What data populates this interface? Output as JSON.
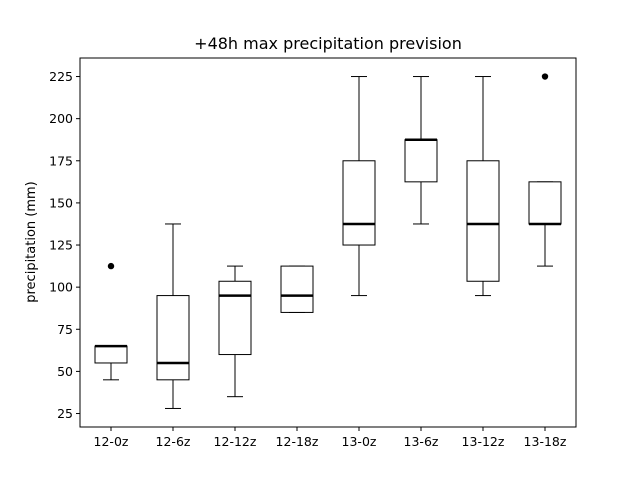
{
  "chart_data": {
    "type": "boxplot",
    "title": "+48h max precipitation prevision",
    "xlabel": "",
    "ylabel": "precipitation (mm)",
    "ylim": [
      17,
      236
    ],
    "yticks": [
      25,
      50,
      75,
      100,
      125,
      150,
      175,
      200,
      225
    ],
    "ytick_labels": [
      "25",
      "50",
      "75",
      "100",
      "125",
      "150",
      "175",
      "200",
      "225"
    ],
    "categories": [
      "12-0z",
      "12-6z",
      "12-12z",
      "12-18z",
      "13-0z",
      "13-6z",
      "13-12z",
      "13-18z"
    ],
    "boxes": [
      {
        "whisker_low": 45,
        "q1": 55,
        "median": 65,
        "q3": 65,
        "whisker_high": 65,
        "outliers": [
          112.5
        ]
      },
      {
        "whisker_low": 28,
        "q1": 45,
        "median": 55,
        "q3": 95,
        "whisker_high": 137.5,
        "outliers": []
      },
      {
        "whisker_low": 35,
        "q1": 60,
        "median": 95,
        "q3": 103.5,
        "whisker_high": 112.5,
        "outliers": []
      },
      {
        "whisker_low": 85,
        "q1": 85,
        "median": 95,
        "q3": 112.5,
        "whisker_high": 112.5,
        "outliers": []
      },
      {
        "whisker_low": 95,
        "q1": 125,
        "median": 137.5,
        "q3": 175,
        "whisker_high": 225,
        "outliers": []
      },
      {
        "whisker_low": 137.5,
        "q1": 162.5,
        "median": 187.5,
        "q3": 187.5,
        "whisker_high": 225,
        "outliers": []
      },
      {
        "whisker_low": 95,
        "q1": 103.5,
        "median": 137.5,
        "q3": 175,
        "whisker_high": 225,
        "outliers": []
      },
      {
        "whisker_low": 112.5,
        "q1": 137.5,
        "median": 137.5,
        "q3": 162.5,
        "whisker_high": 162.5,
        "outliers": [
          225
        ]
      }
    ],
    "grid": false,
    "colors": {
      "box": "#000000",
      "median": "#000000",
      "outlier": "#000000",
      "background": "#ffffff"
    }
  }
}
